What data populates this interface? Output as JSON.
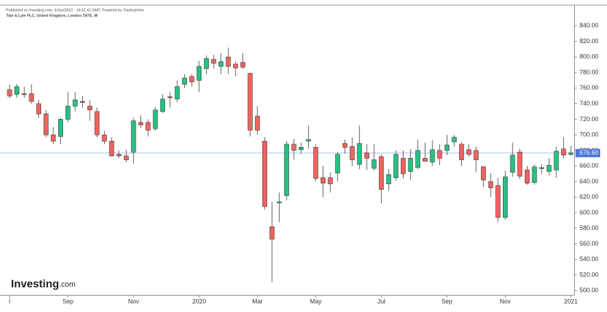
{
  "chart_data": {
    "type": "candlestick",
    "published": "Published on Investing.com, 6/Jan/2021 - 16:51:41 GMT, Powered by TradingView.",
    "title": "Tate & Lyle PLC, United Kingdom, London:TATE, W",
    "brand": "Investing",
    "brand_suffix": ".com",
    "up_color": "#26c281",
    "down_color": "#f0645f",
    "x_labels": [
      {
        "value": 0,
        "label": "l"
      },
      {
        "value": 8,
        "label": "Sep"
      },
      {
        "value": 17,
        "label": "Nov"
      },
      {
        "value": 26,
        "label": "2020"
      },
      {
        "value": 34,
        "label": "Mar"
      },
      {
        "value": 42,
        "label": "May"
      },
      {
        "value": 51,
        "label": "Jul"
      },
      {
        "value": 60,
        "label": "Sep"
      },
      {
        "value": 68,
        "label": "Nov"
      },
      {
        "value": 77,
        "label": "2021"
      }
    ],
    "open": [
      758,
      752,
      753,
      753,
      740,
      727,
      700,
      698,
      720,
      737,
      743,
      737,
      730,
      700,
      692,
      675,
      673,
      678,
      716,
      716,
      708,
      730,
      749,
      746,
      765,
      775,
      770,
      785,
      797,
      788,
      800,
      791,
      793,
      779,
      724,
      692,
      582,
      614,
      622,
      688,
      681,
      692,
      684,
      645,
      645,
      651,
      689,
      685,
      662,
      677,
      657,
      672,
      637,
      645,
      670,
      653,
      658,
      670,
      665,
      680,
      680,
      691,
      688,
      681,
      680,
      659,
      640,
      635,
      594,
      652,
      678,
      655,
      639,
      657,
      653,
      655,
      682,
      675
    ],
    "high": [
      765,
      765,
      762,
      765,
      745,
      732,
      710,
      722,
      755,
      755,
      750,
      745,
      735,
      705,
      697,
      680,
      681,
      722,
      725,
      720,
      736,
      752,
      755,
      770,
      778,
      778,
      795,
      802,
      803,
      805,
      812,
      795,
      805,
      780,
      737,
      697,
      614,
      626,
      692,
      695,
      690,
      712,
      688,
      660,
      652,
      678,
      694,
      697,
      712,
      688,
      688,
      675,
      656,
      680,
      680,
      682,
      694,
      690,
      693,
      688,
      700,
      700,
      691,
      688,
      685,
      660,
      651,
      645,
      654,
      690,
      682,
      660,
      662,
      662,
      670,
      685,
      697,
      686
    ],
    "low": [
      747,
      748,
      748,
      740,
      722,
      697,
      688,
      688,
      716,
      730,
      735,
      718,
      697,
      688,
      672,
      670,
      665,
      663,
      709,
      698,
      705,
      728,
      735,
      742,
      760,
      762,
      755,
      778,
      785,
      778,
      778,
      775,
      785,
      698,
      700,
      604,
      511,
      588,
      616,
      668,
      676,
      682,
      640,
      620,
      626,
      640,
      676,
      660,
      656,
      655,
      654,
      612,
      628,
      641,
      644,
      642,
      656,
      666,
      660,
      661,
      674,
      685,
      660,
      672,
      652,
      633,
      620,
      588,
      591,
      646,
      643,
      636,
      636,
      650,
      648,
      645,
      670,
      673
    ],
    "close": [
      750,
      762,
      752,
      743,
      727,
      700,
      692,
      720,
      737,
      745,
      742,
      732,
      700,
      692,
      673,
      673,
      668,
      718,
      713,
      706,
      732,
      746,
      748,
      762,
      773,
      768,
      788,
      798,
      792,
      794,
      788,
      786,
      787,
      706,
      706,
      608,
      566,
      614,
      688,
      680,
      684,
      694,
      644,
      638,
      637,
      675,
      684,
      668,
      689,
      670,
      668,
      630,
      649,
      675,
      650,
      670,
      680,
      666,
      681,
      670,
      687,
      697,
      668,
      675,
      668,
      642,
      632,
      594,
      646,
      674,
      647,
      638,
      659,
      658,
      661,
      679,
      674,
      677
    ],
    "last_price": {
      "value": 676.6,
      "label": "676.60"
    },
    "ylim": [
      498,
      846
    ],
    "yticks": [
      {
        "value": 500,
        "label": "500.00"
      },
      {
        "value": 520,
        "label": "520.00"
      },
      {
        "value": 540,
        "label": "540.00"
      },
      {
        "value": 560,
        "label": "560.00"
      },
      {
        "value": 580,
        "label": "580.00"
      },
      {
        "value": 600,
        "label": "600.00"
      },
      {
        "value": 620,
        "label": "620.00"
      },
      {
        "value": 640,
        "label": "640.00"
      },
      {
        "value": 660,
        "label": "660.00"
      },
      {
        "value": 680,
        "label": "680.00"
      },
      {
        "value": 700,
        "label": "700.00"
      },
      {
        "value": 720,
        "label": "720.00"
      },
      {
        "value": 740,
        "label": "740.00"
      },
      {
        "value": 760,
        "label": "760.00"
      },
      {
        "value": 780,
        "label": "780.00"
      },
      {
        "value": 800,
        "label": "800.00"
      },
      {
        "value": 820,
        "label": "820.00"
      },
      {
        "value": 840,
        "label": "840.00"
      }
    ]
  }
}
